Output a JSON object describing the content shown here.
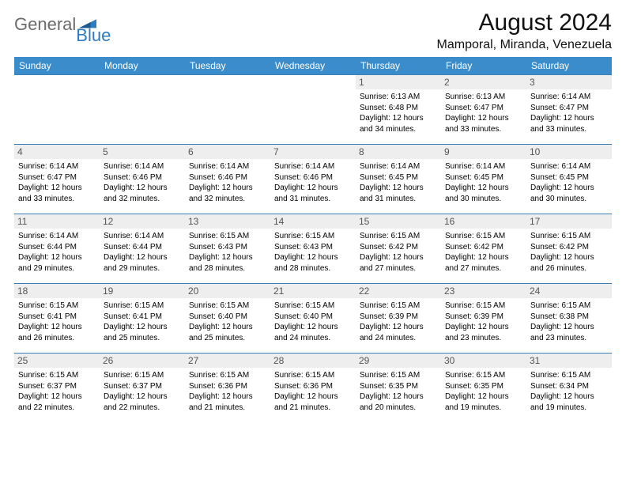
{
  "brand": {
    "general": "General",
    "blue": "Blue"
  },
  "title": "August 2024",
  "location": "Mamporal, Miranda, Venezuela",
  "colors": {
    "header_bg": "#3a8dca",
    "header_text": "#ffffff",
    "border": "#3a7fb5",
    "daynum_bg": "#eeeeee",
    "logo_general": "#6b6b6b",
    "logo_blue": "#2f7bbf"
  },
  "weekdays": [
    "Sunday",
    "Monday",
    "Tuesday",
    "Wednesday",
    "Thursday",
    "Friday",
    "Saturday"
  ],
  "typography": {
    "title_fontsize": 30,
    "location_fontsize": 16,
    "weekday_fontsize": 12,
    "cell_fontsize": 10,
    "daynum_fontsize": 12
  },
  "layout": {
    "weeks": 5,
    "cols": 7,
    "first_day_col": 4
  },
  "days": [
    {
      "n": 1,
      "sr": "6:13 AM",
      "ss": "6:48 PM",
      "dl": "12 hours and 34 minutes."
    },
    {
      "n": 2,
      "sr": "6:13 AM",
      "ss": "6:47 PM",
      "dl": "12 hours and 33 minutes."
    },
    {
      "n": 3,
      "sr": "6:14 AM",
      "ss": "6:47 PM",
      "dl": "12 hours and 33 minutes."
    },
    {
      "n": 4,
      "sr": "6:14 AM",
      "ss": "6:47 PM",
      "dl": "12 hours and 33 minutes."
    },
    {
      "n": 5,
      "sr": "6:14 AM",
      "ss": "6:46 PM",
      "dl": "12 hours and 32 minutes."
    },
    {
      "n": 6,
      "sr": "6:14 AM",
      "ss": "6:46 PM",
      "dl": "12 hours and 32 minutes."
    },
    {
      "n": 7,
      "sr": "6:14 AM",
      "ss": "6:46 PM",
      "dl": "12 hours and 31 minutes."
    },
    {
      "n": 8,
      "sr": "6:14 AM",
      "ss": "6:45 PM",
      "dl": "12 hours and 31 minutes."
    },
    {
      "n": 9,
      "sr": "6:14 AM",
      "ss": "6:45 PM",
      "dl": "12 hours and 30 minutes."
    },
    {
      "n": 10,
      "sr": "6:14 AM",
      "ss": "6:45 PM",
      "dl": "12 hours and 30 minutes."
    },
    {
      "n": 11,
      "sr": "6:14 AM",
      "ss": "6:44 PM",
      "dl": "12 hours and 29 minutes."
    },
    {
      "n": 12,
      "sr": "6:14 AM",
      "ss": "6:44 PM",
      "dl": "12 hours and 29 minutes."
    },
    {
      "n": 13,
      "sr": "6:15 AM",
      "ss": "6:43 PM",
      "dl": "12 hours and 28 minutes."
    },
    {
      "n": 14,
      "sr": "6:15 AM",
      "ss": "6:43 PM",
      "dl": "12 hours and 28 minutes."
    },
    {
      "n": 15,
      "sr": "6:15 AM",
      "ss": "6:42 PM",
      "dl": "12 hours and 27 minutes."
    },
    {
      "n": 16,
      "sr": "6:15 AM",
      "ss": "6:42 PM",
      "dl": "12 hours and 27 minutes."
    },
    {
      "n": 17,
      "sr": "6:15 AM",
      "ss": "6:42 PM",
      "dl": "12 hours and 26 minutes."
    },
    {
      "n": 18,
      "sr": "6:15 AM",
      "ss": "6:41 PM",
      "dl": "12 hours and 26 minutes."
    },
    {
      "n": 19,
      "sr": "6:15 AM",
      "ss": "6:41 PM",
      "dl": "12 hours and 25 minutes."
    },
    {
      "n": 20,
      "sr": "6:15 AM",
      "ss": "6:40 PM",
      "dl": "12 hours and 25 minutes."
    },
    {
      "n": 21,
      "sr": "6:15 AM",
      "ss": "6:40 PM",
      "dl": "12 hours and 24 minutes."
    },
    {
      "n": 22,
      "sr": "6:15 AM",
      "ss": "6:39 PM",
      "dl": "12 hours and 24 minutes."
    },
    {
      "n": 23,
      "sr": "6:15 AM",
      "ss": "6:39 PM",
      "dl": "12 hours and 23 minutes."
    },
    {
      "n": 24,
      "sr": "6:15 AM",
      "ss": "6:38 PM",
      "dl": "12 hours and 23 minutes."
    },
    {
      "n": 25,
      "sr": "6:15 AM",
      "ss": "6:37 PM",
      "dl": "12 hours and 22 minutes."
    },
    {
      "n": 26,
      "sr": "6:15 AM",
      "ss": "6:37 PM",
      "dl": "12 hours and 22 minutes."
    },
    {
      "n": 27,
      "sr": "6:15 AM",
      "ss": "6:36 PM",
      "dl": "12 hours and 21 minutes."
    },
    {
      "n": 28,
      "sr": "6:15 AM",
      "ss": "6:36 PM",
      "dl": "12 hours and 21 minutes."
    },
    {
      "n": 29,
      "sr": "6:15 AM",
      "ss": "6:35 PM",
      "dl": "12 hours and 20 minutes."
    },
    {
      "n": 30,
      "sr": "6:15 AM",
      "ss": "6:35 PM",
      "dl": "12 hours and 19 minutes."
    },
    {
      "n": 31,
      "sr": "6:15 AM",
      "ss": "6:34 PM",
      "dl": "12 hours and 19 minutes."
    }
  ],
  "labels": {
    "sunrise": "Sunrise: ",
    "sunset": "Sunset: ",
    "daylight": "Daylight: "
  }
}
